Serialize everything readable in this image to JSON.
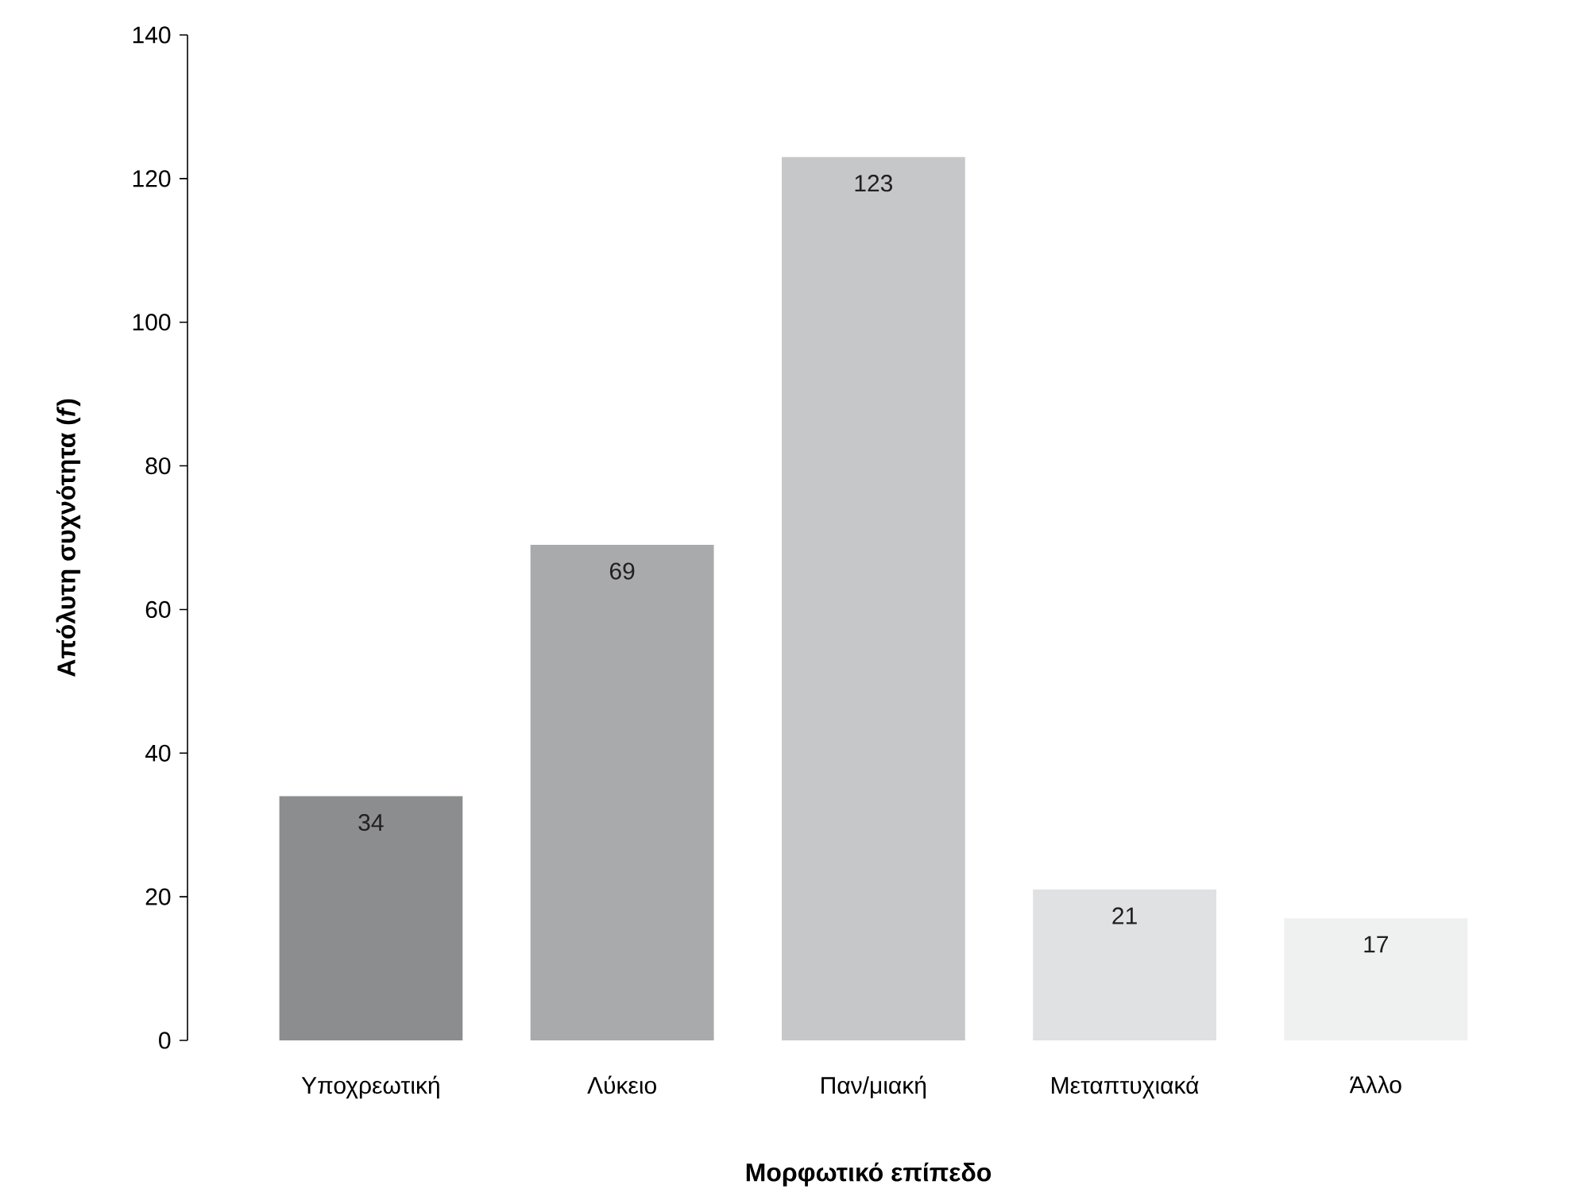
{
  "chart_data": {
    "type": "bar",
    "xlabel": "Μορφωτικό επίπεδο",
    "ylabel": "Απόλυτη συχνότητα (*f*)",
    "categories": [
      "Υποχρεωτική",
      "Λύκειο",
      "Παν/μιακή",
      "Μεταπτυχιακά",
      "Άλλο"
    ],
    "values": [
      34,
      69,
      123,
      21,
      17
    ],
    "colors": [
      "#8c8d8f",
      "#a9aaac",
      "#c6c7c9",
      "#e0e1e2",
      "#eff0f0"
    ],
    "ylim": [
      0,
      140
    ],
    "yticks": [
      0,
      20,
      40,
      60,
      80,
      100,
      120,
      140
    ],
    "data_labels": true
  }
}
